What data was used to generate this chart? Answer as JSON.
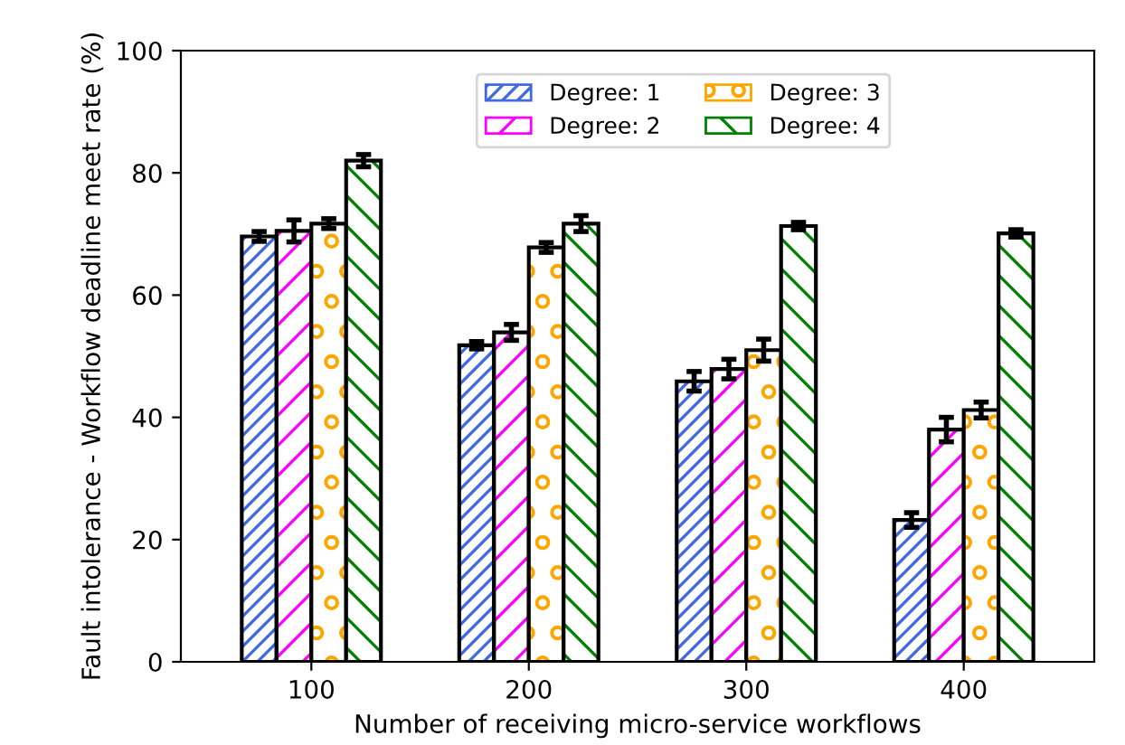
{
  "chart_data": {
    "type": "bar",
    "xlabel": "Number of receiving micro-service workflows",
    "ylabel": "Fault intolerance - Workflow deadline meet rate (%)",
    "categories": [
      "100",
      "200",
      "300",
      "400"
    ],
    "series": [
      {
        "name": "Degree: 1",
        "color": "#4169e1",
        "values": [
          69.6,
          51.8,
          45.9,
          23.2
        ],
        "errors": [
          0.8,
          0.6,
          1.6,
          1.2
        ]
      },
      {
        "name": "Degree: 2",
        "color": "#ff00ff",
        "values": [
          70.5,
          53.9,
          47.9,
          38.0
        ],
        "errors": [
          1.8,
          1.3,
          1.6,
          2.0
        ]
      },
      {
        "name": "Degree: 3",
        "color": "#ffa500",
        "values": [
          71.7,
          67.8,
          51.0,
          41.2
        ],
        "errors": [
          0.8,
          0.8,
          1.8,
          1.3
        ]
      },
      {
        "name": "Degree: 4",
        "color": "#008000",
        "values": [
          82.0,
          71.7,
          71.3,
          70.1
        ],
        "errors": [
          1.0,
          1.3,
          0.6,
          0.6
        ]
      }
    ],
    "ylim": [
      0,
      100
    ],
    "yticks": [
      0,
      20,
      40,
      60,
      80,
      100
    ],
    "grid": false,
    "legend": "top"
  }
}
